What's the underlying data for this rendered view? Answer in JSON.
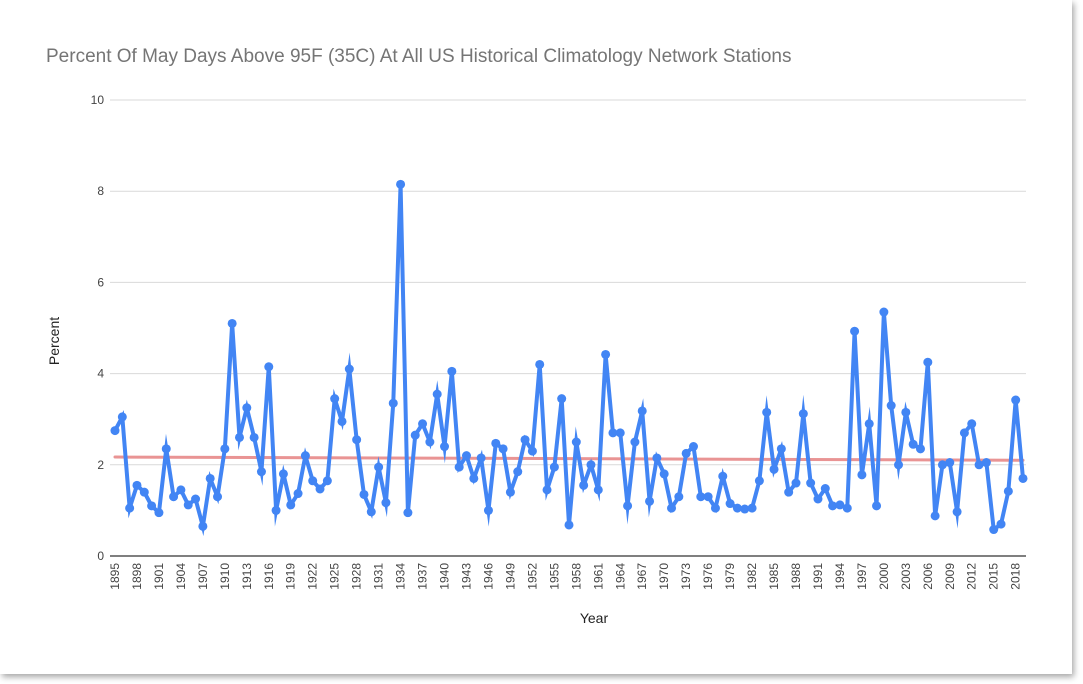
{
  "chart_data": {
    "type": "line",
    "title": "Percent Of May Days Above 95F (35C) At All US Historical Climatology Network Stations",
    "xlabel": "Year",
    "ylabel": "Percent",
    "ylim": [
      0,
      10
    ],
    "y_ticks": [
      "0",
      "2",
      "4",
      "6",
      "8",
      "10"
    ],
    "x_tick_labels": [
      "1895",
      "1898",
      "1901",
      "1904",
      "1907",
      "1910",
      "1913",
      "1916",
      "1919",
      "1922",
      "1925",
      "1928",
      "1931",
      "1934",
      "1937",
      "1940",
      "1943",
      "1946",
      "1949",
      "1952",
      "1955",
      "1958",
      "1961",
      "1964",
      "1967",
      "1970",
      "1973",
      "1976",
      "1979",
      "1982",
      "1985",
      "1988",
      "1991",
      "1994",
      "1997",
      "2000",
      "2003",
      "2006",
      "2009",
      "2012",
      "2015",
      "2018"
    ],
    "grid": true,
    "legend": "none",
    "series": [
      {
        "color": "#4285f4",
        "x_start": 1895,
        "values": [
          2.75,
          3.05,
          1.05,
          1.55,
          1.4,
          1.1,
          0.95,
          2.35,
          1.3,
          1.45,
          1.12,
          1.25,
          0.65,
          1.7,
          1.3,
          2.35,
          5.1,
          2.6,
          3.25,
          2.6,
          1.85,
          4.15,
          1.0,
          1.8,
          1.12,
          1.37,
          2.2,
          1.65,
          1.47,
          1.65,
          3.45,
          2.95,
          4.1,
          2.55,
          1.35,
          0.97,
          1.95,
          1.17,
          3.35,
          8.15,
          0.95,
          2.65,
          2.9,
          2.5,
          3.55,
          2.4,
          4.05,
          1.95,
          2.2,
          1.7,
          2.15,
          1.0,
          2.47,
          2.35,
          1.4,
          1.85,
          2.55,
          2.3,
          4.2,
          1.45,
          1.95,
          3.45,
          0.68,
          2.5,
          1.55,
          2.0,
          1.45,
          4.42,
          2.7,
          2.7,
          1.1,
          2.5,
          3.18,
          1.2,
          2.15,
          1.8,
          1.05,
          1.3,
          2.25,
          2.4,
          1.3,
          1.3,
          1.05,
          1.75,
          1.15,
          1.05,
          1.03,
          1.05,
          1.65,
          3.15,
          1.9,
          2.35,
          1.4,
          1.6,
          3.12,
          1.6,
          1.25,
          1.48,
          1.1,
          1.12,
          1.05,
          4.93,
          1.78,
          2.9,
          1.1,
          5.35,
          3.3,
          2.0,
          3.15,
          2.45,
          2.35,
          4.25,
          0.88,
          2.0,
          2.05,
          0.97,
          2.7,
          2.9,
          2.0,
          2.05,
          0.58,
          0.7,
          1.42,
          3.42,
          1.7
        ]
      },
      {
        "color": "#e06666",
        "trend": true,
        "start": [
          1895,
          2.17
        ],
        "end": [
          2019,
          2.1
        ]
      }
    ],
    "colors": {
      "series": "#4285f4",
      "trend": "#e06666",
      "grid": "#d9d9d9",
      "title": "#757575",
      "axis_line": "#333333"
    }
  }
}
